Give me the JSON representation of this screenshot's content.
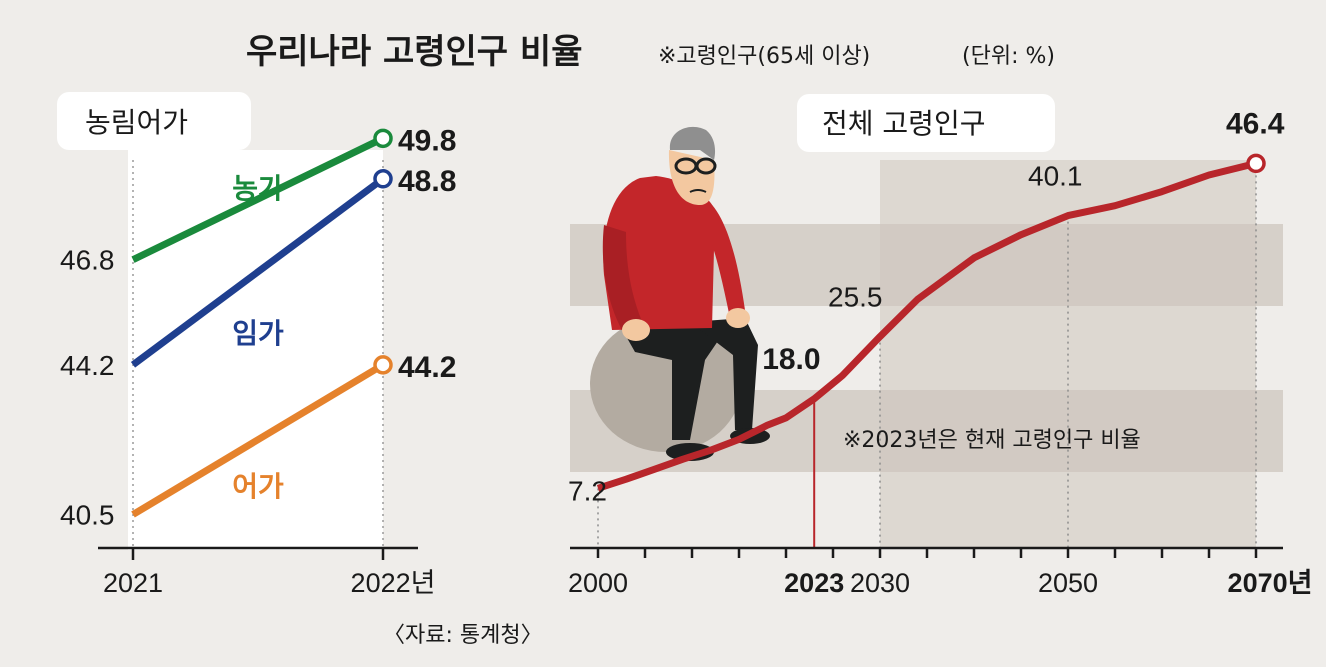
{
  "header": {
    "title": "우리나라 고령인구 비율",
    "note": "※고령인구(65세 이상)",
    "unit": "(단위: %)"
  },
  "source": "〈자료: 통계청〉",
  "colors": {
    "farm": "#1a8a3c",
    "forest": "#1f3f8f",
    "fish": "#e5822c",
    "total": "#b8262b",
    "band": "#d5cfc7"
  },
  "chart_data": [
    {
      "type": "line",
      "panel_label": "농림어가",
      "x": [
        "2021",
        "2022"
      ],
      "x_tick_labels": [
        "2021",
        "2022년"
      ],
      "series": [
        {
          "name": "농가",
          "values": [
            46.8,
            49.8
          ]
        },
        {
          "name": "임가",
          "values": [
            44.2,
            48.8
          ]
        },
        {
          "name": "어가",
          "values": [
            40.5,
            44.2
          ]
        }
      ],
      "ylim": [
        39.5,
        50.5
      ]
    },
    {
      "type": "line",
      "panel_label": "전체 고령인구",
      "x": [
        2000,
        2003,
        2006,
        2009,
        2012,
        2015,
        2018,
        2020,
        2023,
        2026,
        2030,
        2034,
        2040,
        2045,
        2050,
        2055,
        2060,
        2065,
        2070
      ],
      "values": [
        7.2,
        8.3,
        9.5,
        10.7,
        11.8,
        13.1,
        14.8,
        15.7,
        18.0,
        20.8,
        25.5,
        30.0,
        35.0,
        37.8,
        40.1,
        41.3,
        43.0,
        45.0,
        46.4
      ],
      "x_tick_labels": [
        "2000",
        "2023",
        "2030",
        "2050",
        "2070년"
      ],
      "data_labels": [
        {
          "x": 2000,
          "text": "7.2"
        },
        {
          "x": 2023,
          "text": "18.0"
        },
        {
          "x": 2030,
          "text": "25.5"
        },
        {
          "x": 2050,
          "text": "40.1"
        },
        {
          "x": 2070,
          "text": "46.4"
        }
      ],
      "annotation": "※2023년은 현재 고령인구 비율",
      "ylim": [
        0,
        52
      ]
    }
  ]
}
